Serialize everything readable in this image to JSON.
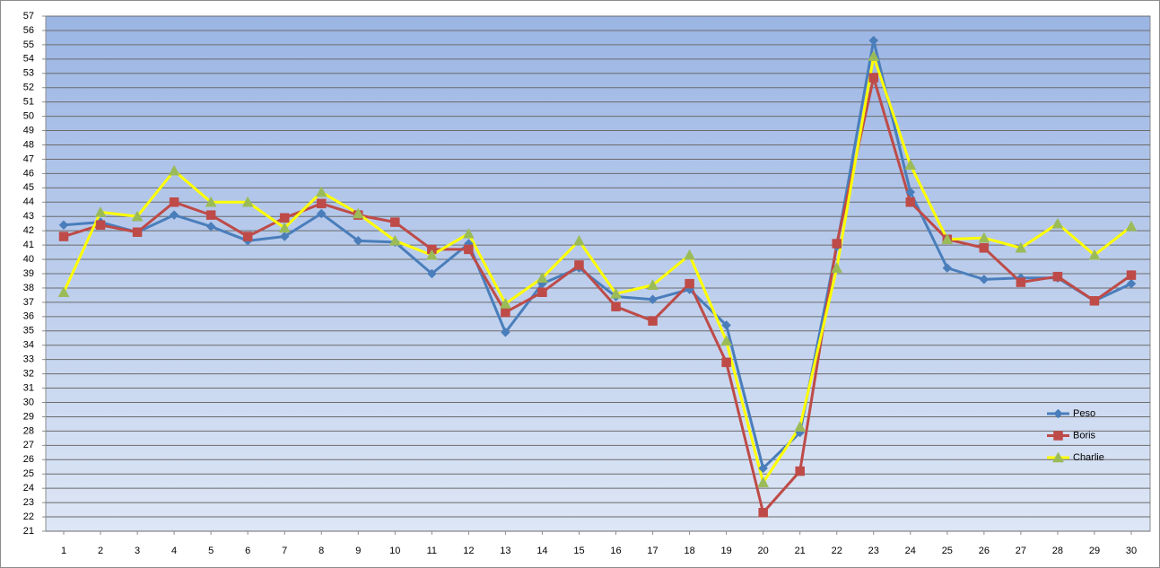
{
  "chart_data": {
    "type": "line",
    "categories": [
      "1",
      "2",
      "3",
      "4",
      "5",
      "6",
      "7",
      "8",
      "9",
      "10",
      "11",
      "12",
      "13",
      "14",
      "15",
      "16",
      "17",
      "18",
      "19",
      "20",
      "21",
      "22",
      "23",
      "24",
      "25",
      "26",
      "27",
      "28",
      "29",
      "30"
    ],
    "series": [
      {
        "name": "Peso",
        "color": "#4a7ebb",
        "marker_color": "#4a7ebb",
        "marker": "diamond",
        "values": [
          42.4,
          42.6,
          41.9,
          43.1,
          42.3,
          41.3,
          41.6,
          43.2,
          41.3,
          41.2,
          39.0,
          41.1,
          34.9,
          38.3,
          39.4,
          37.4,
          37.2,
          37.9,
          35.4,
          25.4,
          27.9,
          40.9,
          55.3,
          44.7,
          39.4,
          38.6,
          38.7,
          38.7,
          37.1,
          38.3
        ]
      },
      {
        "name": "Boris",
        "color": "#be4b48",
        "marker_color": "#be4b48",
        "marker": "square",
        "values": [
          41.6,
          42.4,
          41.9,
          44.0,
          43.1,
          41.6,
          42.9,
          43.9,
          43.1,
          42.6,
          40.7,
          40.7,
          36.3,
          37.7,
          39.6,
          36.7,
          35.7,
          38.3,
          32.8,
          22.3,
          25.2,
          41.1,
          52.7,
          44.0,
          41.4,
          40.8,
          38.4,
          38.8,
          37.1,
          38.9
        ]
      },
      {
        "name": "Charlie",
        "color": "#ffff00",
        "marker_color": "#9bbb59",
        "marker": "triangle",
        "values": [
          37.7,
          43.3,
          43.0,
          46.2,
          44.0,
          44.0,
          42.2,
          44.7,
          43.2,
          41.3,
          40.3,
          41.8,
          36.9,
          38.7,
          41.3,
          37.6,
          38.2,
          40.3,
          34.3,
          24.4,
          28.3,
          39.4,
          54.2,
          46.6,
          41.4,
          41.5,
          40.8,
          42.5,
          40.3,
          42.3
        ]
      }
    ],
    "ylim": [
      21,
      57
    ],
    "yticks": [
      21,
      22,
      23,
      24,
      25,
      26,
      27,
      28,
      29,
      30,
      31,
      32,
      33,
      34,
      35,
      36,
      37,
      38,
      39,
      40,
      41,
      42,
      43,
      44,
      45,
      46,
      47,
      48,
      49,
      50,
      51,
      52,
      53,
      54,
      55,
      56,
      57
    ],
    "grid": true,
    "legend": "right"
  }
}
